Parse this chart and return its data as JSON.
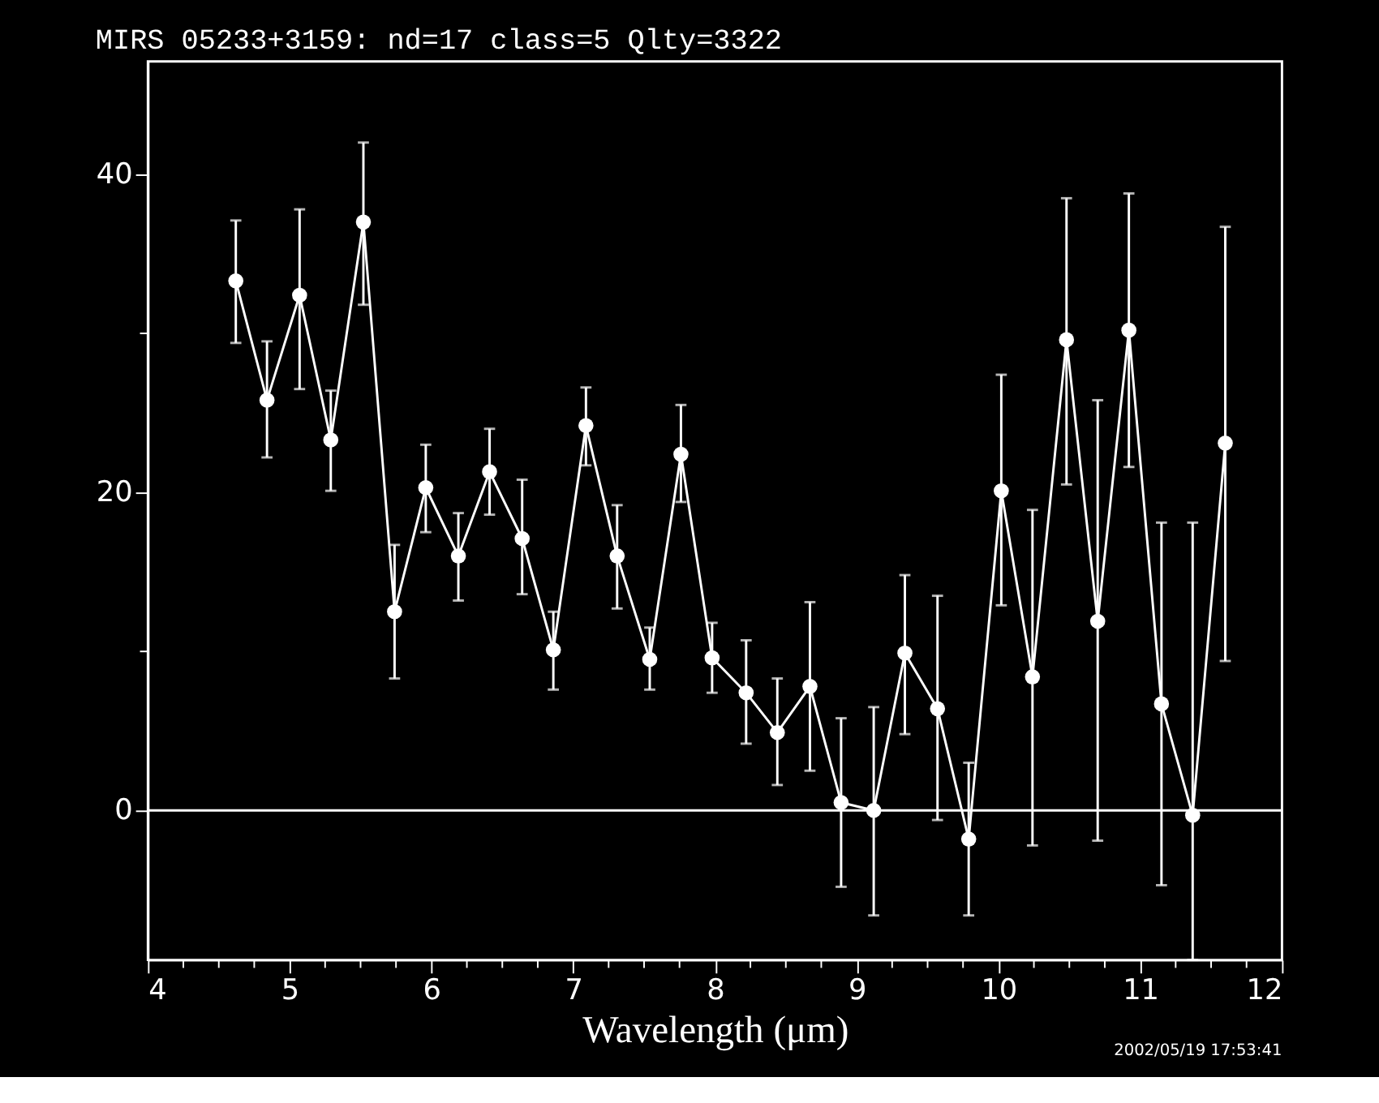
{
  "chart_data": {
    "type": "line",
    "title": "MIRS 05233+3159: nd=17 class=5 Qlty=3322",
    "xlabel": "Wavelength (μm)",
    "annotations": [
      "2002/05/19 17:53:41"
    ],
    "x": [
      4.62,
      4.84,
      5.07,
      5.29,
      5.52,
      5.74,
      5.96,
      6.19,
      6.41,
      6.64,
      6.86,
      7.09,
      7.31,
      7.54,
      7.76,
      7.98,
      8.22,
      8.44,
      8.67,
      8.89,
      9.12,
      9.34,
      9.57,
      9.79,
      10.02,
      10.24,
      10.48,
      10.7,
      10.92,
      11.15,
      11.37,
      11.6
    ],
    "series": [
      {
        "color": "#ffffff",
        "values": [
          33.3,
          25.8,
          32.4,
          23.3,
          37.0,
          12.5,
          20.3,
          16.0,
          21.3,
          17.1,
          10.1,
          24.2,
          16.0,
          9.5,
          22.4,
          9.6,
          7.4,
          4.9,
          7.8,
          0.5,
          0.0,
          9.9,
          6.4,
          -1.8,
          20.1,
          8.4,
          29.6,
          11.9,
          30.2,
          6.7,
          -0.3,
          23.1
        ],
        "errors": [
          [
            29.4,
            37.1
          ],
          [
            22.2,
            29.5
          ],
          [
            26.5,
            37.8
          ],
          [
            20.1,
            26.4
          ],
          [
            31.8,
            42.0
          ],
          [
            8.3,
            16.7
          ],
          [
            17.5,
            23.0
          ],
          [
            13.2,
            18.7
          ],
          [
            18.6,
            24.0
          ],
          [
            13.6,
            20.8
          ],
          [
            7.6,
            12.5
          ],
          [
            21.7,
            26.6
          ],
          [
            12.7,
            19.2
          ],
          [
            7.6,
            11.5
          ],
          [
            19.4,
            25.5
          ],
          [
            7.4,
            11.8
          ],
          [
            4.2,
            10.7
          ],
          [
            1.6,
            8.3
          ],
          [
            2.5,
            13.1
          ],
          [
            -4.8,
            5.8
          ],
          [
            -6.6,
            6.5
          ],
          [
            4.8,
            14.8
          ],
          [
            -0.6,
            13.5
          ],
          [
            -6.6,
            3.0
          ],
          [
            12.9,
            27.4
          ],
          [
            -2.2,
            18.9
          ],
          [
            20.5,
            38.5
          ],
          [
            -1.9,
            25.8
          ],
          [
            21.6,
            38.8
          ],
          [
            -4.7,
            18.1
          ],
          [
            -9.4,
            18.1
          ],
          [
            9.4,
            36.7
          ]
        ]
      }
    ],
    "xlim": [
      4,
      12
    ],
    "ylim": [
      -9.4,
      47.1
    ],
    "xticks": [
      4,
      {
        "value": 4.25,
        "label": null
      },
      {
        "value": 4.5,
        "label": null
      },
      {
        "value": 4.75,
        "label": null
      },
      5,
      {
        "value": 5.25,
        "label": null
      },
      {
        "value": 5.5,
        "label": null
      },
      {
        "value": 5.75,
        "label": null
      },
      6,
      {
        "value": 6.25,
        "label": null
      },
      {
        "value": 6.5,
        "label": null
      },
      {
        "value": 6.75,
        "label": null
      },
      7,
      {
        "value": 7.25,
        "label": null
      },
      {
        "value": 7.5,
        "label": null
      },
      {
        "value": 7.75,
        "label": null
      },
      8,
      {
        "value": 8.25,
        "label": null
      },
      {
        "value": 8.5,
        "label": null
      },
      {
        "value": 8.75,
        "label": null
      },
      9,
      {
        "value": 9.25,
        "label": null
      },
      {
        "value": 9.5,
        "label": null
      },
      {
        "value": 9.75,
        "label": null
      },
      10,
      {
        "value": 10.25,
        "label": null
      },
      {
        "value": 10.5,
        "label": null
      },
      {
        "value": 10.75,
        "label": null
      },
      11,
      {
        "value": 11.25,
        "label": null
      },
      {
        "value": 11.5,
        "label": null
      },
      {
        "value": 11.75,
        "label": null
      },
      12
    ],
    "yticks": [
      0,
      {
        "value": 10,
        "label": null
      },
      20,
      {
        "value": 30,
        "label": null
      },
      40
    ],
    "ref_lines": [
      {
        "axis": "y",
        "value": 0,
        "color": "#ffffff"
      }
    ],
    "marker": "circle",
    "line_style": "solid",
    "grid": false
  }
}
